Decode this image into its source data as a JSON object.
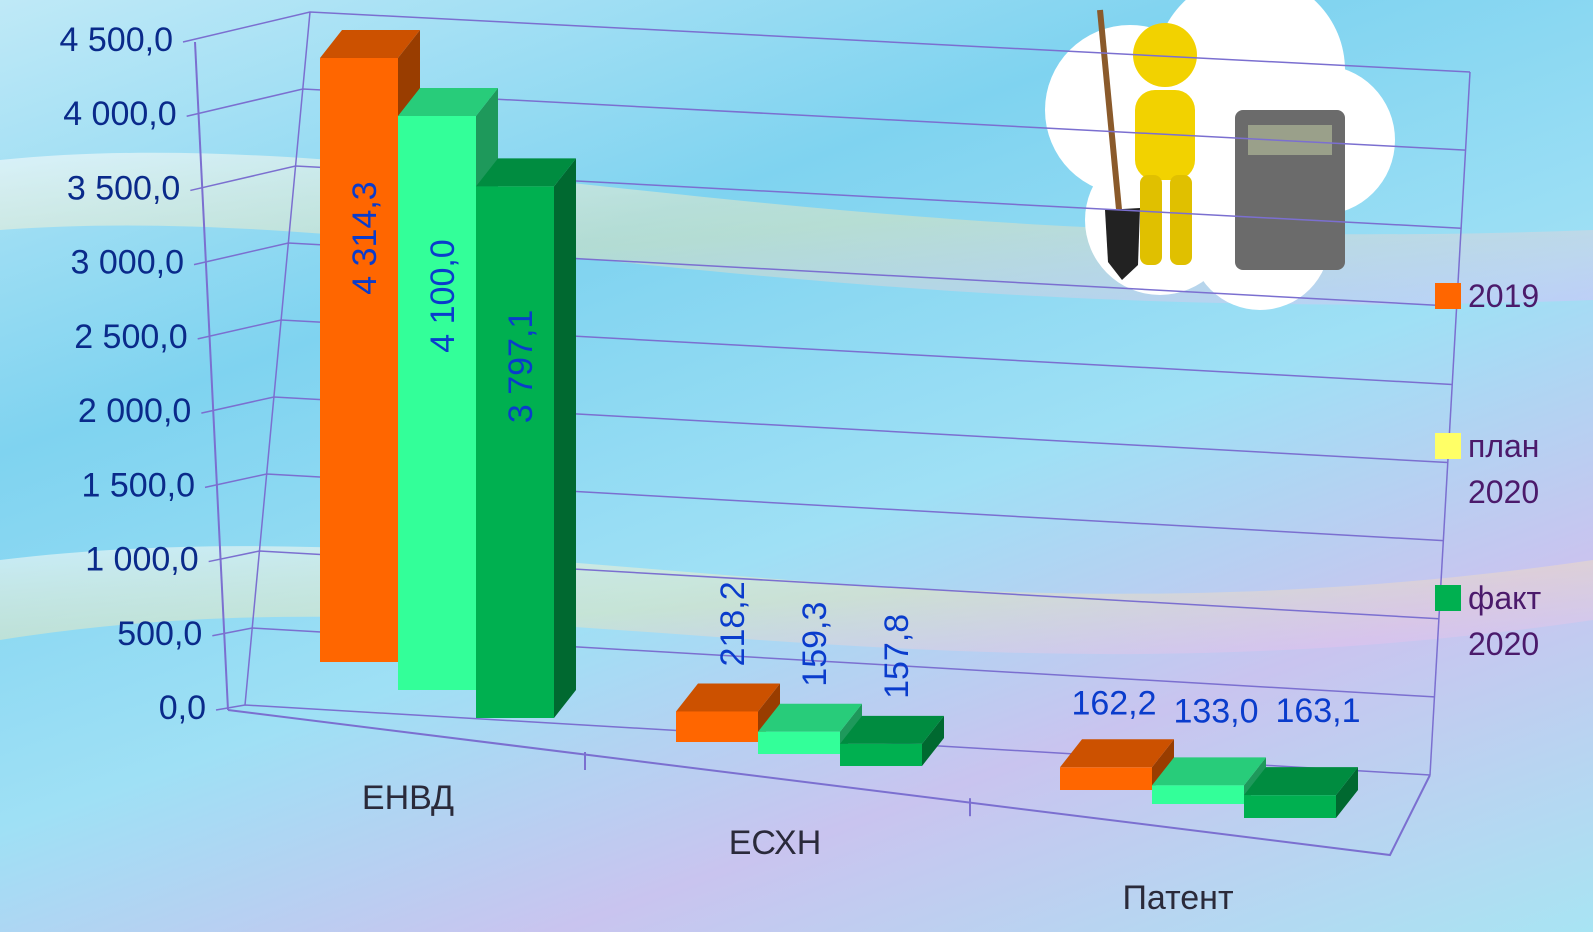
{
  "chart_data": {
    "type": "bar3d",
    "categories": [
      "ЕНВД",
      "ЕСХН",
      "Патент"
    ],
    "series": [
      {
        "name": "2019",
        "color": "#ff6600",
        "legend_color": "#ff6600",
        "values": [
          4314.3,
          218.2,
          162.2
        ],
        "value_labels": [
          "4 314,3",
          "218,2",
          "162,2"
        ]
      },
      {
        "name": "план 2020",
        "color": "#33ff99",
        "legend_color": "#ffff66",
        "values": [
          4100.0,
          159.3,
          133.0
        ],
        "value_labels": [
          "4 100,0",
          "159,3",
          "133,0"
        ]
      },
      {
        "name": "факт 2020",
        "color": "#00b050",
        "legend_color": "#00b050",
        "values": [
          3797.1,
          157.8,
          163.1
        ],
        "value_labels": [
          "3 797,1",
          "157,8",
          "163,1"
        ]
      }
    ],
    "ylim": [
      0,
      4500
    ],
    "yticks": [
      {
        "value": 0,
        "label": "0,0"
      },
      {
        "value": 500,
        "label": "500,0"
      },
      {
        "value": 1000,
        "label": "1 000,0"
      },
      {
        "value": 1500,
        "label": "1 500,0"
      },
      {
        "value": 2000,
        "label": "2 000,0"
      },
      {
        "value": 2500,
        "label": "2 500,0"
      },
      {
        "value": 3000,
        "label": "3 000,0"
      },
      {
        "value": 3500,
        "label": "3 500,0"
      },
      {
        "value": 4000,
        "label": "4 000,0"
      },
      {
        "value": 4500,
        "label": "4 500,0"
      }
    ],
    "grid": true,
    "legend": "right"
  }
}
